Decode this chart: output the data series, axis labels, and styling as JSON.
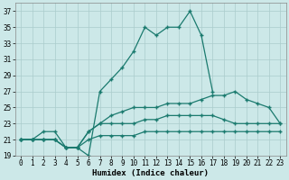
{
  "title": "",
  "xlabel": "Humidex (Indice chaleur)",
  "x": [
    0,
    1,
    2,
    3,
    4,
    5,
    6,
    7,
    8,
    9,
    10,
    11,
    12,
    13,
    14,
    15,
    16,
    17,
    18,
    19,
    20,
    21,
    22,
    23
  ],
  "line1_x": [
    0,
    1,
    2,
    3,
    4,
    5,
    6,
    7,
    8,
    9,
    10,
    11,
    12,
    13,
    14,
    15,
    16,
    17
  ],
  "line1_y": [
    21,
    21,
    22,
    22,
    20,
    20,
    19,
    27,
    28.5,
    30,
    32,
    35,
    34,
    35,
    35,
    37,
    34,
    27
  ],
  "line2_x": [
    0,
    1,
    2,
    3,
    4,
    5,
    6,
    7,
    8,
    9,
    10,
    11,
    12,
    13,
    14,
    15,
    16,
    17,
    18,
    19,
    20,
    21,
    22,
    23
  ],
  "line2_y": [
    21,
    21,
    21,
    21,
    20,
    20,
    22,
    23,
    24,
    24.5,
    25,
    25,
    25,
    25.5,
    25.5,
    25.5,
    26,
    26.5,
    26.5,
    27,
    26,
    25.5,
    25,
    23
  ],
  "line3_x": [
    0,
    1,
    2,
    3,
    4,
    5,
    6,
    7,
    8,
    9,
    10,
    11,
    12,
    13,
    14,
    15,
    16,
    17,
    18,
    19,
    20,
    21,
    22,
    23
  ],
  "line3_y": [
    21,
    21,
    21,
    21,
    20,
    20,
    22,
    23,
    23,
    23,
    23,
    23.5,
    23.5,
    24,
    24,
    24,
    24,
    24,
    23.5,
    23,
    23,
    23,
    23,
    23
  ],
  "line4_x": [
    0,
    1,
    2,
    3,
    4,
    5,
    6,
    7,
    8,
    9,
    10,
    11,
    12,
    13,
    14,
    15,
    16,
    17,
    18,
    19,
    20,
    21,
    22,
    23
  ],
  "line4_y": [
    21,
    21,
    21,
    21,
    20,
    20,
    21,
    21.5,
    21.5,
    21.5,
    21.5,
    22,
    22,
    22,
    22,
    22,
    22,
    22,
    22,
    22,
    22,
    22,
    22,
    22
  ],
  "bg_color": "#cce8e8",
  "line_color": "#1a7a6e",
  "grid_color": "#aacccc",
  "ylim": [
    19,
    38
  ],
  "xlim": [
    -0.5,
    23.5
  ],
  "yticks": [
    19,
    21,
    23,
    25,
    27,
    29,
    31,
    33,
    35,
    37
  ],
  "xticks": [
    0,
    1,
    2,
    3,
    4,
    5,
    6,
    7,
    8,
    9,
    10,
    11,
    12,
    13,
    14,
    15,
    16,
    17,
    18,
    19,
    20,
    21,
    22,
    23
  ],
  "tick_fontsize": 5.5,
  "xlabel_fontsize": 6.5
}
